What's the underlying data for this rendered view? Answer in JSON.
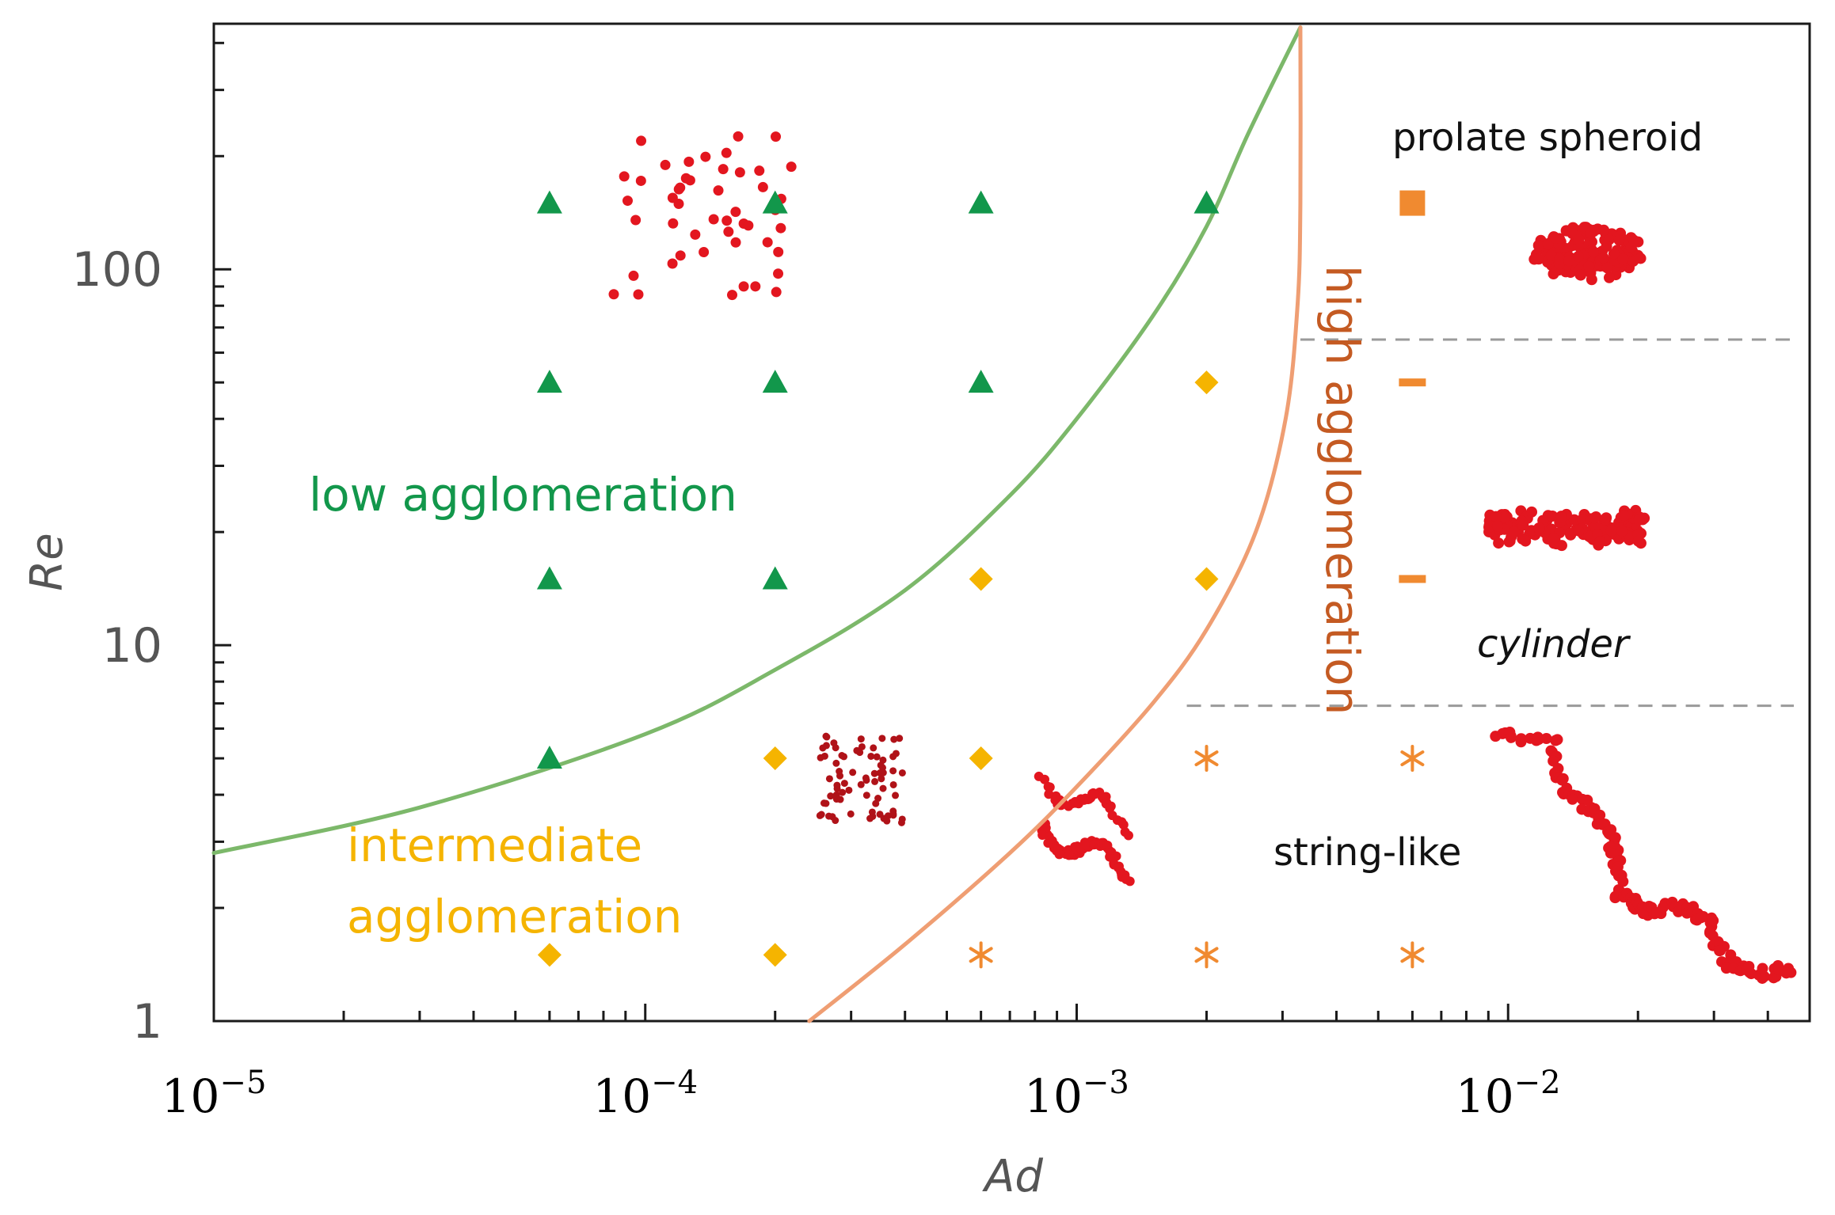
{
  "chart_data": {
    "type": "scatter",
    "xscale": "log",
    "yscale": "log",
    "xlim": [
      1e-05,
      0.05
    ],
    "ylim": [
      1,
      450
    ],
    "xlabel": "Ad",
    "ylabel": "Re",
    "x_ticks": [
      {
        "value": 1e-05,
        "base": "10",
        "exp": "−5"
      },
      {
        "value": 0.0001,
        "base": "10",
        "exp": "−4"
      },
      {
        "value": 0.001,
        "base": "10",
        "exp": "−3"
      },
      {
        "value": 0.01,
        "base": "10",
        "exp": "−2"
      }
    ],
    "y_ticks": [
      {
        "value": 1,
        "label": "1"
      },
      {
        "value": 10,
        "label": "10"
      },
      {
        "value": 100,
        "label": "100"
      }
    ],
    "series": [
      {
        "name": "low agglomeration",
        "marker": "triangle",
        "color": "#12974b",
        "points": [
          [
            6e-05,
            150
          ],
          [
            0.0002,
            150
          ],
          [
            0.0006,
            150
          ],
          [
            0.002,
            150
          ],
          [
            6e-05,
            50
          ],
          [
            0.0002,
            50
          ],
          [
            0.0006,
            50
          ],
          [
            6e-05,
            15
          ],
          [
            0.0002,
            15
          ],
          [
            6e-05,
            5
          ]
        ]
      },
      {
        "name": "intermediate agglomeration",
        "marker": "diamond",
        "color": "#f5b400",
        "points": [
          [
            0.002,
            50
          ],
          [
            0.0006,
            15
          ],
          [
            0.002,
            15
          ],
          [
            0.0002,
            5
          ],
          [
            0.0006,
            5
          ],
          [
            6e-05,
            1.5
          ],
          [
            0.0002,
            1.5
          ]
        ]
      },
      {
        "name": "high agglomeration prolate spheroid",
        "marker": "square",
        "color": "#f08a30",
        "points": [
          [
            0.006,
            150
          ]
        ]
      },
      {
        "name": "high agglomeration cylinder",
        "marker": "dash",
        "color": "#f08a30",
        "points": [
          [
            0.006,
            50
          ],
          [
            0.006,
            15
          ]
        ]
      },
      {
        "name": "high agglomeration string-like",
        "marker": "asterisk",
        "color": "#f08a30",
        "points": [
          [
            0.002,
            5
          ],
          [
            0.006,
            5
          ],
          [
            0.0006,
            1.5
          ],
          [
            0.002,
            1.5
          ],
          [
            0.006,
            1.5
          ]
        ]
      }
    ],
    "boundaries": [
      {
        "name": "low/intermediate boundary",
        "color": "#7cb86a",
        "points": [
          [
            1e-05,
            2.8
          ],
          [
            3e-05,
            3.7
          ],
          [
            0.0001,
            5.8
          ],
          [
            0.0002,
            8.6
          ],
          [
            0.0004,
            14
          ],
          [
            0.0007,
            25
          ],
          [
            0.001,
            40
          ],
          [
            0.0015,
            75
          ],
          [
            0.002,
            130
          ],
          [
            0.0025,
            230
          ],
          [
            0.0033,
            440
          ]
        ]
      },
      {
        "name": "intermediate/high boundary",
        "color": "#ef9e73",
        "points": [
          [
            0.00024,
            1
          ],
          [
            0.0004,
            1.6
          ],
          [
            0.0007,
            2.8
          ],
          [
            0.001,
            4.2
          ],
          [
            0.0015,
            7
          ],
          [
            0.002,
            11
          ],
          [
            0.0026,
            20
          ],
          [
            0.00305,
            40
          ],
          [
            0.00325,
            80
          ],
          [
            0.0033,
            150
          ],
          [
            0.0033,
            440
          ]
        ]
      }
    ],
    "dividers": [
      {
        "y": 65,
        "x_from": 0.0033,
        "x_to": 0.05
      },
      {
        "y": 6.9,
        "x_from": 0.0018,
        "x_to": 0.05
      }
    ],
    "region_labels": {
      "low": "low agglomeration",
      "intermediate_1": "intermediate",
      "intermediate_2": "agglomeration",
      "high": "high  agglomeration"
    },
    "shape_labels": {
      "prolate": "prolate spheroid",
      "cylinder": "cylinder",
      "string": "string-like"
    },
    "colors": {
      "low": "#12974b",
      "intermediate": "#f5b400",
      "high": "#c45a22",
      "cluster": "#e3161f",
      "dark_cluster": "#b01218",
      "divider": "#9a9a9a"
    }
  }
}
